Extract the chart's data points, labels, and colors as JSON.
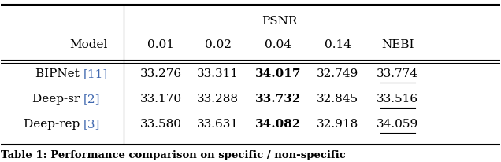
{
  "title": "PSNR",
  "col_header": [
    "Model",
    "0.01",
    "0.02",
    "0.04",
    "0.14",
    "NEBI"
  ],
  "rows": [
    [
      "BIPNet [11]",
      "33.276",
      "33.311",
      "34.017",
      "32.749",
      "33.774"
    ],
    [
      "Deep-sr [2]",
      "33.170",
      "33.288",
      "33.732",
      "32.845",
      "33.516"
    ],
    [
      "Deep-rep [3]",
      "33.580",
      "33.631",
      "34.082",
      "32.918",
      "34.059"
    ]
  ],
  "bold_col": 3,
  "underline_col": 5,
  "ref_numbers": [
    "11",
    "2",
    "3"
  ],
  "ref_color": "#4169B0",
  "background_color": "#ffffff",
  "caption": "Table 1: Performance comparison on specific / non-specific"
}
